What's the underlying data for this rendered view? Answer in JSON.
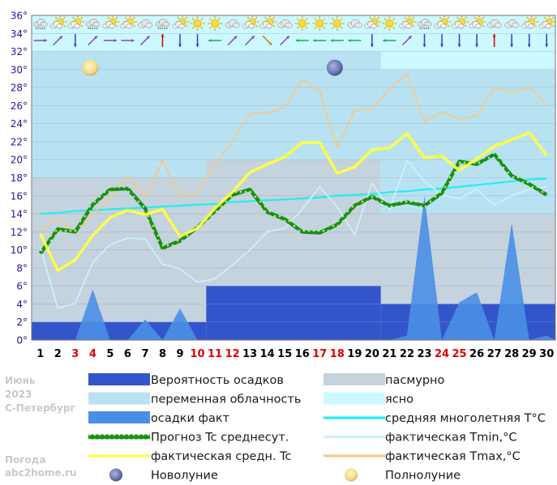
{
  "side_info": {
    "month": "Июнь",
    "year": "2023",
    "city": "С-Петербург",
    "site_line1": "Погода",
    "site_line2": "abc2home.ru"
  },
  "legend": {
    "precip_prob": "Вероятность осадков",
    "overcast": "пасмурно",
    "partly": "переменная облачность",
    "clear": "ясно",
    "precip_fact": "осадки факт",
    "mean_longterm": "средняя многолетняя T°C",
    "forecast_mean": "Прогноз Tc среднесут.",
    "fact_tmin": "фактическая Tmin,°C",
    "fact_mean": "фактическая средн. Tc",
    "fact_tmax": "фактическая Tmax,°C",
    "new_moon": "Новолуние",
    "full_moon": "Полнолуние"
  },
  "colors": {
    "precip_prob": "#3355cc",
    "overcast": "#c4d3de",
    "partly": "#b8e2f2",
    "clear": "#ccf8ff",
    "precip_fact": "#4a8fe6",
    "mean_longterm": "#22eeee",
    "forecast_mean": "#1b8c1b",
    "fact_tmin": "#ccf4ff",
    "fact_mean": "#ffff44",
    "fact_tmax": "#f5c98a",
    "weekend": "#e00000",
    "weekday": "#000000"
  },
  "chart_data": {
    "type": "line",
    "x": [
      1,
      2,
      3,
      4,
      5,
      6,
      7,
      8,
      9,
      10,
      11,
      12,
      13,
      14,
      15,
      16,
      17,
      18,
      19,
      20,
      21,
      22,
      23,
      24,
      25,
      26,
      27,
      28,
      29,
      30
    ],
    "x_labels": [
      "1",
      "2",
      "3",
      "4",
      "5",
      "6",
      "7",
      "8",
      "9",
      "10",
      "11",
      "12",
      "13",
      "14",
      "15",
      "16",
      "17",
      "18",
      "19",
      "20",
      "21",
      "22",
      "23",
      "24",
      "25",
      "26",
      "27",
      "28",
      "29",
      "30"
    ],
    "weekend_days": [
      3,
      4,
      10,
      11,
      12,
      17,
      18,
      24,
      25
    ],
    "y_ticks": [
      "0°",
      "2°",
      "4°",
      "6°",
      "8°",
      "10°",
      "12°",
      "14°",
      "16°",
      "18°",
      "20°",
      "22°",
      "24°",
      "26°",
      "28°",
      "30°",
      "32°",
      "34°",
      "36°"
    ],
    "ylim": [
      0,
      36
    ],
    "icon_row": [
      "cloud-rain",
      "sun-cloud",
      "sun-cloud",
      "cloud-rain",
      "sun-cloud",
      "sun-cloud",
      "cloud",
      "cloud-rain",
      "sun-cloud",
      "sun",
      "sun",
      "cloud",
      "sun-cloud",
      "sun-cloud",
      "cloud",
      "sun",
      "sun",
      "sun",
      "cloud",
      "sun-cloud",
      "sun",
      "sun-cloud",
      "cloud-rain",
      "sun-cloud",
      "sun-cloud",
      "sun-cloud",
      "cloud",
      "cloud",
      "sun-cloud",
      "sun-cloud"
    ],
    "wind_row": [
      "E",
      "NE",
      "S",
      "NE",
      "E",
      "E",
      "NE",
      "N",
      "S",
      "S",
      "W",
      "NE",
      "NE",
      "SE",
      "NE",
      "W",
      "W",
      "W",
      "W",
      "S",
      "W",
      "NE",
      "S",
      "S",
      "S",
      "S",
      "N",
      "S",
      "S",
      "S"
    ],
    "cloud_bands": [
      {
        "from": 0.5,
        "to": 10.5,
        "overcast_up_to": 18,
        "partly_up_to": 32
      },
      {
        "from": 10.5,
        "to": 20.5,
        "overcast_up_to": 20,
        "partly_up_to": 32
      },
      {
        "from": 20.5,
        "to": 30.5,
        "overcast_up_to": 14,
        "partly_up_to": 30
      }
    ],
    "series": [
      {
        "name": "Вероятность осадков",
        "type": "step",
        "segments": [
          {
            "from": 0.5,
            "to": 10.5,
            "value": 2
          },
          {
            "from": 10.5,
            "to": 20.5,
            "value": 6
          },
          {
            "from": 20.5,
            "to": 30.5,
            "value": 4
          }
        ]
      },
      {
        "name": "осадки факт",
        "type": "area",
        "x": [
          0.5,
          3,
          4,
          5,
          6,
          7,
          8,
          9,
          10,
          11,
          20,
          21,
          22,
          23,
          24,
          25,
          26,
          27,
          28,
          29,
          30,
          30.5
        ],
        "values": [
          0,
          0,
          5.6,
          0,
          0,
          2.3,
          0,
          3.5,
          0,
          0,
          0,
          0,
          0.5,
          16,
          0,
          4.2,
          5.3,
          0,
          13,
          0,
          0.5,
          0
        ]
      },
      {
        "name": "средняя многолетняя T°C",
        "values": [
          14.0,
          14.1,
          14.3,
          14.4,
          14.5,
          14.6,
          14.7,
          14.8,
          14.9,
          15.0,
          15.1,
          15.3,
          15.4,
          15.5,
          15.6,
          15.7,
          15.8,
          16.0,
          16.1,
          16.2,
          16.4,
          16.5,
          16.7,
          16.8,
          17.0,
          17.2,
          17.4,
          17.6,
          17.8,
          17.9
        ]
      },
      {
        "name": "фактическая Tmin,°C",
        "values": [
          10.3,
          3.5,
          4.1,
          8.6,
          10.6,
          11.3,
          11.2,
          8.4,
          7.9,
          6.4,
          6.8,
          8.3,
          10.0,
          12.0,
          12.4,
          14.5,
          17.0,
          14.8,
          11.7,
          17.4,
          14.5,
          19.9,
          17.6,
          16.1,
          15.7,
          16.7,
          15.0,
          16.0,
          16.7,
          17.0
        ]
      },
      {
        "name": "фактическая Tmax,°C",
        "values": [
          12.1,
          13.6,
          11.8,
          14.0,
          15.8,
          18.3,
          15.9,
          19.9,
          15.9,
          16.4,
          19.6,
          22.0,
          25.1,
          25.2,
          25.8,
          28.9,
          27.6,
          21.3,
          25.5,
          25.6,
          27.9,
          29.5,
          24.2,
          25.3,
          24.5,
          24.9,
          28.0,
          27.5,
          28.0,
          26.1
        ]
      },
      {
        "name": "Прогноз Tc среднесут.",
        "values": [
          9.6,
          12.3,
          12.0,
          15.0,
          16.7,
          16.8,
          14.6,
          10.2,
          11.0,
          12.5,
          14.3,
          16.1,
          16.7,
          14.2,
          13.4,
          12.0,
          11.9,
          12.8,
          14.9,
          15.9,
          14.9,
          15.3,
          14.9,
          16.3,
          19.8,
          19.5,
          20.6,
          18.2,
          17.3,
          16.1
        ]
      },
      {
        "name": "фактическая средн. Tc",
        "values": [
          11.8,
          7.7,
          8.9,
          11.6,
          13.6,
          14.4,
          13.9,
          14.5,
          11.5,
          12.4,
          14.6,
          16.4,
          18.6,
          19.5,
          20.3,
          21.9,
          21.9,
          18.5,
          19.2,
          21.1,
          21.3,
          22.9,
          20.2,
          20.4,
          18.8,
          20.1,
          21.5,
          22.2,
          23.0,
          20.5
        ]
      }
    ],
    "new_moon": {
      "day": 18,
      "value": 30.2
    },
    "full_moon": {
      "day": 4,
      "value": 30.2
    }
  }
}
